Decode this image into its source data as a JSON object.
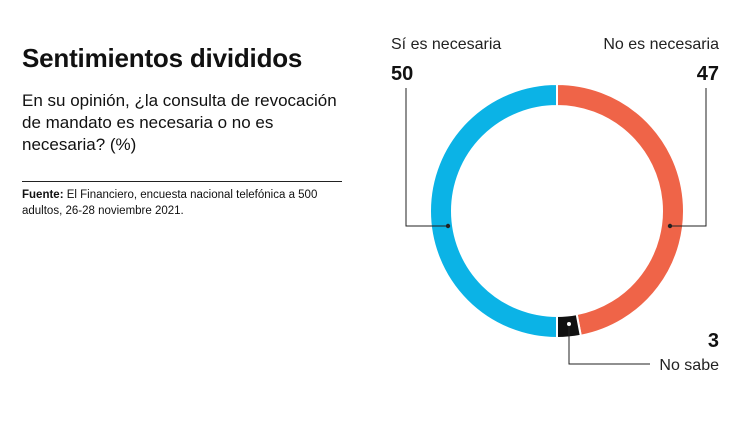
{
  "header": {
    "title": "Sentimientos divididos",
    "subtitle": "En su opinión, ¿la consulta de revocación de mandato es necesaria o no es necesaria? (%)"
  },
  "source": {
    "label": "Fuente:",
    "text": "El Financiero, encuesta nacional telefónica a 500 adultos, 26-28 noviembre 2021."
  },
  "chart_data": {
    "type": "pie",
    "donut": true,
    "unit": "%",
    "slices": [
      {
        "label": "Sí es necesaria",
        "value": 50,
        "color": "#0bb3e6"
      },
      {
        "label": "No es necesaria",
        "value": 47,
        "color": "#ef6448"
      },
      {
        "label": "No sabe",
        "value": 3,
        "color": "#111111"
      }
    ]
  }
}
